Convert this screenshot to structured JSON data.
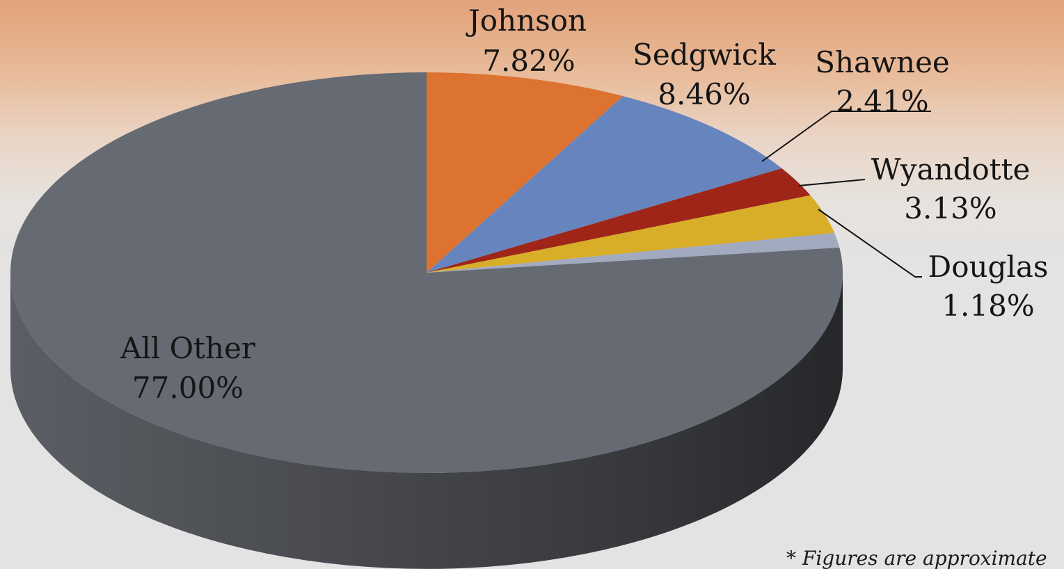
{
  "chart_data": {
    "type": "pie",
    "title": "",
    "slices": [
      {
        "label": "Johnson",
        "value": 7.82,
        "value_label": "7.82%",
        "color": "#dd7330"
      },
      {
        "label": "Sedgwick",
        "value": 8.46,
        "value_label": "8.46%",
        "color": "#6685bf"
      },
      {
        "label": "Shawnee",
        "value": 2.41,
        "value_label": "2.41%",
        "color": "#9e2517"
      },
      {
        "label": "Wyandotte",
        "value": 3.13,
        "value_label": "3.13%",
        "color": "#d8ae28"
      },
      {
        "label": "Douglas",
        "value": 1.18,
        "value_label": "1.18%",
        "color": "#a2aac0"
      },
      {
        "label": "All Other",
        "value": 77.0,
        "value_label": "77.00%",
        "color": "#666a72"
      }
    ],
    "style": "3d",
    "legend": "none",
    "footnote": "* Figures are approximate"
  }
}
